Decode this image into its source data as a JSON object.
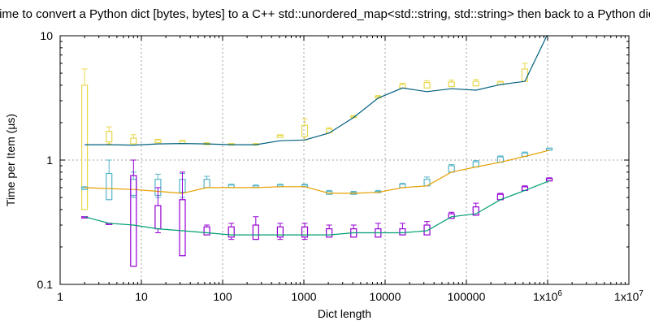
{
  "chart_data": {
    "type": "line",
    "title": "Time to convert a Python dict [bytes, bytes] to a C++ std::unordered_map<std::string, std::string> then back to a Python dict",
    "xlabel": "Dict length",
    "ylabel": "Time per Item (µs)",
    "x_scale": "log",
    "y_scale": "log",
    "xlim": [
      1,
      10000000
    ],
    "ylim": [
      0.1,
      10
    ],
    "grid": true,
    "legend": "none",
    "x_tick_labels": [
      "1",
      "10",
      "100",
      "1000",
      "10000",
      "100000",
      "1x10^6",
      "1x10^7"
    ],
    "x_tick_values": [
      1,
      10,
      100,
      1000,
      10000,
      100000,
      1000000,
      10000000
    ],
    "y_tick_labels": [
      "0.1",
      "1",
      "10"
    ],
    "y_tick_values": [
      0.1,
      1,
      10
    ],
    "x": [
      2,
      4,
      8,
      16,
      32,
      64,
      128,
      256,
      512,
      1024,
      2048,
      4096,
      8192,
      16384,
      32768,
      65536,
      131072,
      262144,
      524288,
      1048576
    ],
    "series": [
      {
        "color": "#e6d84c",
        "line_color": "#005f7f",
        "line": [
          1.33,
          1.33,
          1.32,
          1.35,
          1.36,
          1.35,
          1.33,
          1.33,
          1.43,
          1.45,
          1.65,
          2.2,
          3.15,
          3.8,
          3.55,
          3.75,
          3.65,
          4.05,
          4.3,
          11.0
        ],
        "boxes": [
          {
            "lo": 0.4,
            "q1": 0.4,
            "q3": 4.0,
            "hi": 5.4
          },
          {
            "lo": 1.35,
            "q1": 1.4,
            "q3": 1.7,
            "hi": 1.85
          },
          {
            "lo": 1.35,
            "q1": 1.35,
            "q3": 1.5,
            "hi": 1.6
          },
          {
            "lo": 1.38,
            "q1": 1.38,
            "q3": 1.45,
            "hi": 1.47
          },
          {
            "lo": 1.36,
            "q1": 1.36,
            "q3": 1.42,
            "hi": 1.44
          },
          {
            "lo": 1.33,
            "q1": 1.33,
            "q3": 1.37,
            "hi": 1.38
          },
          {
            "lo": 1.32,
            "q1": 1.32,
            "q3": 1.35,
            "hi": 1.36
          },
          {
            "lo": 1.32,
            "q1": 1.32,
            "q3": 1.35,
            "hi": 1.36
          },
          {
            "lo": 1.52,
            "q1": 1.52,
            "q3": 1.58,
            "hi": 1.6
          },
          {
            "lo": 1.45,
            "q1": 1.55,
            "q3": 1.9,
            "hi": 2.15
          },
          {
            "lo": 1.66,
            "q1": 1.66,
            "q3": 1.78,
            "hi": 1.82
          },
          {
            "lo": 2.2,
            "q1": 2.2,
            "q3": 2.25,
            "hi": 2.28
          },
          {
            "lo": 3.15,
            "q1": 3.15,
            "q3": 3.25,
            "hi": 3.3
          },
          {
            "lo": 3.8,
            "q1": 3.8,
            "q3": 4.05,
            "hi": 4.15
          },
          {
            "lo": 3.8,
            "q1": 3.8,
            "q3": 4.2,
            "hi": 4.35
          },
          {
            "lo": 3.9,
            "q1": 3.9,
            "q3": 4.25,
            "hi": 4.4
          },
          {
            "lo": 3.95,
            "q1": 3.95,
            "q3": 4.3,
            "hi": 4.45
          },
          {
            "lo": 4.05,
            "q1": 4.05,
            "q3": 4.25,
            "hi": 4.3
          },
          {
            "lo": 4.3,
            "q1": 4.3,
            "q3": 5.4,
            "hi": 6.0
          },
          {
            "lo": 11.0,
            "q1": 11.0,
            "q3": 11.5,
            "hi": 12.0
          }
        ]
      },
      {
        "color": "#56b4c8",
        "line_color": "#e69f00",
        "line": [
          0.6,
          0.59,
          0.58,
          0.56,
          0.54,
          0.6,
          0.6,
          0.6,
          0.61,
          0.61,
          0.54,
          0.54,
          0.55,
          0.6,
          0.62,
          0.8,
          0.88,
          0.96,
          1.07,
          1.2
        ],
        "boxes": [
          {
            "lo": 0.58,
            "q1": 0.58,
            "q3": 0.6,
            "hi": 0.61
          },
          {
            "lo": 0.48,
            "q1": 0.48,
            "q3": 0.78,
            "hi": 1.0
          },
          {
            "lo": 0.5,
            "q1": 0.52,
            "q3": 0.7,
            "hi": 0.8
          },
          {
            "lo": 0.5,
            "q1": 0.52,
            "q3": 0.7,
            "hi": 0.77
          },
          {
            "lo": 0.5,
            "q1": 0.55,
            "q3": 0.7,
            "hi": 0.78
          },
          {
            "lo": 0.6,
            "q1": 0.6,
            "q3": 0.7,
            "hi": 0.74
          },
          {
            "lo": 0.6,
            "q1": 0.6,
            "q3": 0.63,
            "hi": 0.64
          },
          {
            "lo": 0.6,
            "q1": 0.6,
            "q3": 0.62,
            "hi": 0.63
          },
          {
            "lo": 0.61,
            "q1": 0.61,
            "q3": 0.63,
            "hi": 0.64
          },
          {
            "lo": 0.61,
            "q1": 0.61,
            "q3": 0.63,
            "hi": 0.64
          },
          {
            "lo": 0.53,
            "q1": 0.53,
            "q3": 0.56,
            "hi": 0.57
          },
          {
            "lo": 0.53,
            "q1": 0.53,
            "q3": 0.55,
            "hi": 0.56
          },
          {
            "lo": 0.55,
            "q1": 0.55,
            "q3": 0.56,
            "hi": 0.57
          },
          {
            "lo": 0.6,
            "q1": 0.6,
            "q3": 0.64,
            "hi": 0.65
          },
          {
            "lo": 0.62,
            "q1": 0.62,
            "q3": 0.7,
            "hi": 0.73
          },
          {
            "lo": 0.8,
            "q1": 0.8,
            "q3": 0.9,
            "hi": 0.92
          },
          {
            "lo": 0.88,
            "q1": 0.88,
            "q3": 0.97,
            "hi": 0.99
          },
          {
            "lo": 0.96,
            "q1": 0.96,
            "q3": 1.06,
            "hi": 1.08
          },
          {
            "lo": 1.07,
            "q1": 1.07,
            "q3": 1.14,
            "hi": 1.16
          },
          {
            "lo": 1.2,
            "q1": 1.2,
            "q3": 1.24,
            "hi": 1.25
          }
        ]
      },
      {
        "color": "#9400d3",
        "line_color": "#009e73",
        "line": [
          0.35,
          0.31,
          0.3,
          0.28,
          0.27,
          0.26,
          0.25,
          0.25,
          0.25,
          0.25,
          0.25,
          0.26,
          0.26,
          0.26,
          0.27,
          0.35,
          0.37,
          0.48,
          0.57,
          0.68
        ],
        "boxes": [
          {
            "lo": 0.35,
            "q1": 0.35,
            "q3": 0.35,
            "hi": 0.35
          },
          {
            "lo": 0.31,
            "q1": 0.31,
            "q3": 0.31,
            "hi": 0.31
          },
          {
            "lo": 0.14,
            "q1": 0.14,
            "q3": 0.75,
            "hi": 1.0
          },
          {
            "lo": 0.26,
            "q1": 0.28,
            "q3": 0.43,
            "hi": 0.6
          },
          {
            "lo": 0.17,
            "q1": 0.17,
            "q3": 0.48,
            "hi": 0.8
          },
          {
            "lo": 0.25,
            "q1": 0.25,
            "q3": 0.29,
            "hi": 0.3
          },
          {
            "lo": 0.23,
            "q1": 0.24,
            "q3": 0.29,
            "hi": 0.31
          },
          {
            "lo": 0.23,
            "q1": 0.23,
            "q3": 0.3,
            "hi": 0.35
          },
          {
            "lo": 0.23,
            "q1": 0.24,
            "q3": 0.29,
            "hi": 0.31
          },
          {
            "lo": 0.23,
            "q1": 0.24,
            "q3": 0.29,
            "hi": 0.31
          },
          {
            "lo": 0.24,
            "q1": 0.24,
            "q3": 0.28,
            "hi": 0.3
          },
          {
            "lo": 0.24,
            "q1": 0.24,
            "q3": 0.28,
            "hi": 0.3
          },
          {
            "lo": 0.24,
            "q1": 0.24,
            "q3": 0.28,
            "hi": 0.31
          },
          {
            "lo": 0.25,
            "q1": 0.25,
            "q3": 0.28,
            "hi": 0.31
          },
          {
            "lo": 0.25,
            "q1": 0.25,
            "q3": 0.3,
            "hi": 0.32
          },
          {
            "lo": 0.34,
            "q1": 0.34,
            "q3": 0.37,
            "hi": 0.38
          },
          {
            "lo": 0.36,
            "q1": 0.36,
            "q3": 0.42,
            "hi": 0.45
          },
          {
            "lo": 0.48,
            "q1": 0.48,
            "q3": 0.53,
            "hi": 0.54
          },
          {
            "lo": 0.57,
            "q1": 0.57,
            "q3": 0.61,
            "hi": 0.62
          },
          {
            "lo": 0.68,
            "q1": 0.68,
            "q3": 0.71,
            "hi": 0.72
          }
        ]
      }
    ]
  }
}
